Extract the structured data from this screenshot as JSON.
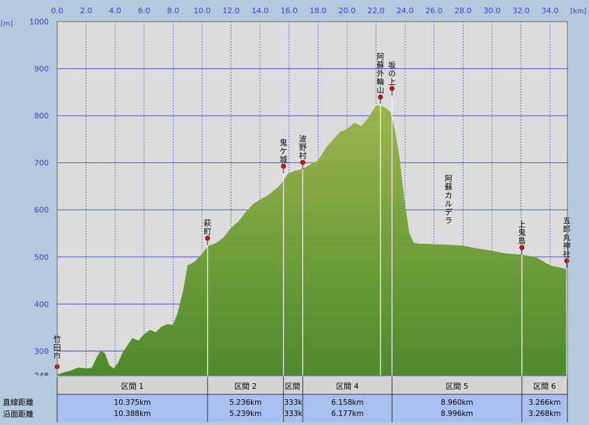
{
  "chart_data": {
    "type": "area",
    "x_unit": "[km]",
    "y_unit": "[m]",
    "xlim": [
      0,
      35.2
    ],
    "ylim": [
      248,
      1000
    ],
    "x_ticks": [
      "0.0",
      "2.0",
      "4.0",
      "6.0",
      "8.0",
      "10.0",
      "12.0",
      "14.0",
      "16.0",
      "18.0",
      "20.0",
      "22.0",
      "24.0",
      "26.0",
      "28.0",
      "30.0",
      "32.0",
      "34.0"
    ],
    "y_ticks": [
      "1000",
      "900",
      "800",
      "700",
      "600",
      "500",
      "400",
      "300"
    ],
    "y_min_label": "248",
    "grid": true,
    "x": [
      0,
      0.3,
      0.6,
      0.9,
      1.2,
      1.5,
      1.8,
      2.1,
      2.4,
      2.7,
      3.0,
      3.3,
      3.6,
      3.9,
      4.2,
      4.5,
      4.8,
      5.2,
      5.6,
      6.0,
      6.4,
      6.8,
      7.2,
      7.6,
      8.0,
      8.3,
      8.7,
      9.0,
      9.5,
      10.0,
      10.4,
      11.0,
      11.5,
      12.0,
      12.5,
      13.0,
      13.5,
      14.0,
      14.5,
      15.0,
      15.3,
      15.6,
      15.9,
      16.3,
      16.6,
      17.0,
      17.5,
      18.0,
      18.5,
      19.0,
      19.5,
      20.0,
      20.5,
      21.0,
      21.5,
      22.0,
      22.5,
      23.0,
      23.3,
      23.6,
      24.0,
      24.3,
      24.6,
      25.0,
      25.4,
      26.0,
      27.0,
      28.0,
      29.0,
      30.0,
      31.0,
      32.0,
      33.0,
      34.0,
      35.2
    ],
    "y": [
      250,
      253,
      256,
      258,
      262,
      265,
      264,
      263,
      265,
      285,
      301,
      295,
      270,
      263,
      275,
      296,
      310,
      328,
      322,
      336,
      345,
      340,
      352,
      357,
      356,
      380,
      430,
      482,
      490,
      507,
      523,
      530,
      542,
      562,
      575,
      595,
      612,
      622,
      630,
      642,
      650,
      662,
      676,
      682,
      684,
      688,
      697,
      705,
      730,
      748,
      765,
      772,
      785,
      778,
      797,
      822,
      820,
      808,
      770,
      715,
      610,
      550,
      530,
      528,
      528,
      527,
      526,
      524,
      518,
      513,
      507,
      505,
      500,
      482,
      474
    ],
    "waypoints": [
      {
        "name": "竹田市",
        "x": 0,
        "y": 252
      },
      {
        "name": "萩町",
        "x": 10.375,
        "y": 525
      },
      {
        "name": "鬼ケ城",
        "x": 15.611,
        "y": 678
      },
      {
        "name": "波野村",
        "x": 16.944,
        "y": 686
      },
      {
        "name": "阿蘇外輪山",
        "x": 22.3,
        "y": 825
      },
      {
        "name": "坂の上",
        "x": 23.102,
        "y": 843
      },
      {
        "name": "上鬼島",
        "x": 32.062,
        "y": 505
      },
      {
        "name": "五郎丸神社",
        "x": 35.2,
        "y": 477
      }
    ],
    "area_labels": [
      {
        "text": "阿蘇カルデラ",
        "x": 27.0,
        "y": 560
      }
    ]
  },
  "segments": [
    {
      "label": "区間 1",
      "straight": "10.375km",
      "surface": "10.388km"
    },
    {
      "label": "区間 2",
      "straight": "5.236km",
      "surface": "5.239km"
    },
    {
      "label": "区間",
      "straight": "333k",
      "surface": "333k"
    },
    {
      "label": "区間 4",
      "straight": "6.158km",
      "surface": "6.177km"
    },
    {
      "label": "区間 5",
      "straight": "8.960km",
      "surface": "8.996km"
    },
    {
      "label": "区間 6",
      "straight": "3.266km",
      "surface": "3.268km"
    }
  ],
  "row_labels": {
    "straight": "直線距離",
    "surface": "沿面距離"
  },
  "colors": {
    "area_top": "#9ab44e",
    "area_bottom": "#4e8a2c",
    "grid": "#3a3ad6",
    "tick": "#4040c0",
    "plot_bg": "#dcdcdc",
    "marker": "#d01010"
  }
}
